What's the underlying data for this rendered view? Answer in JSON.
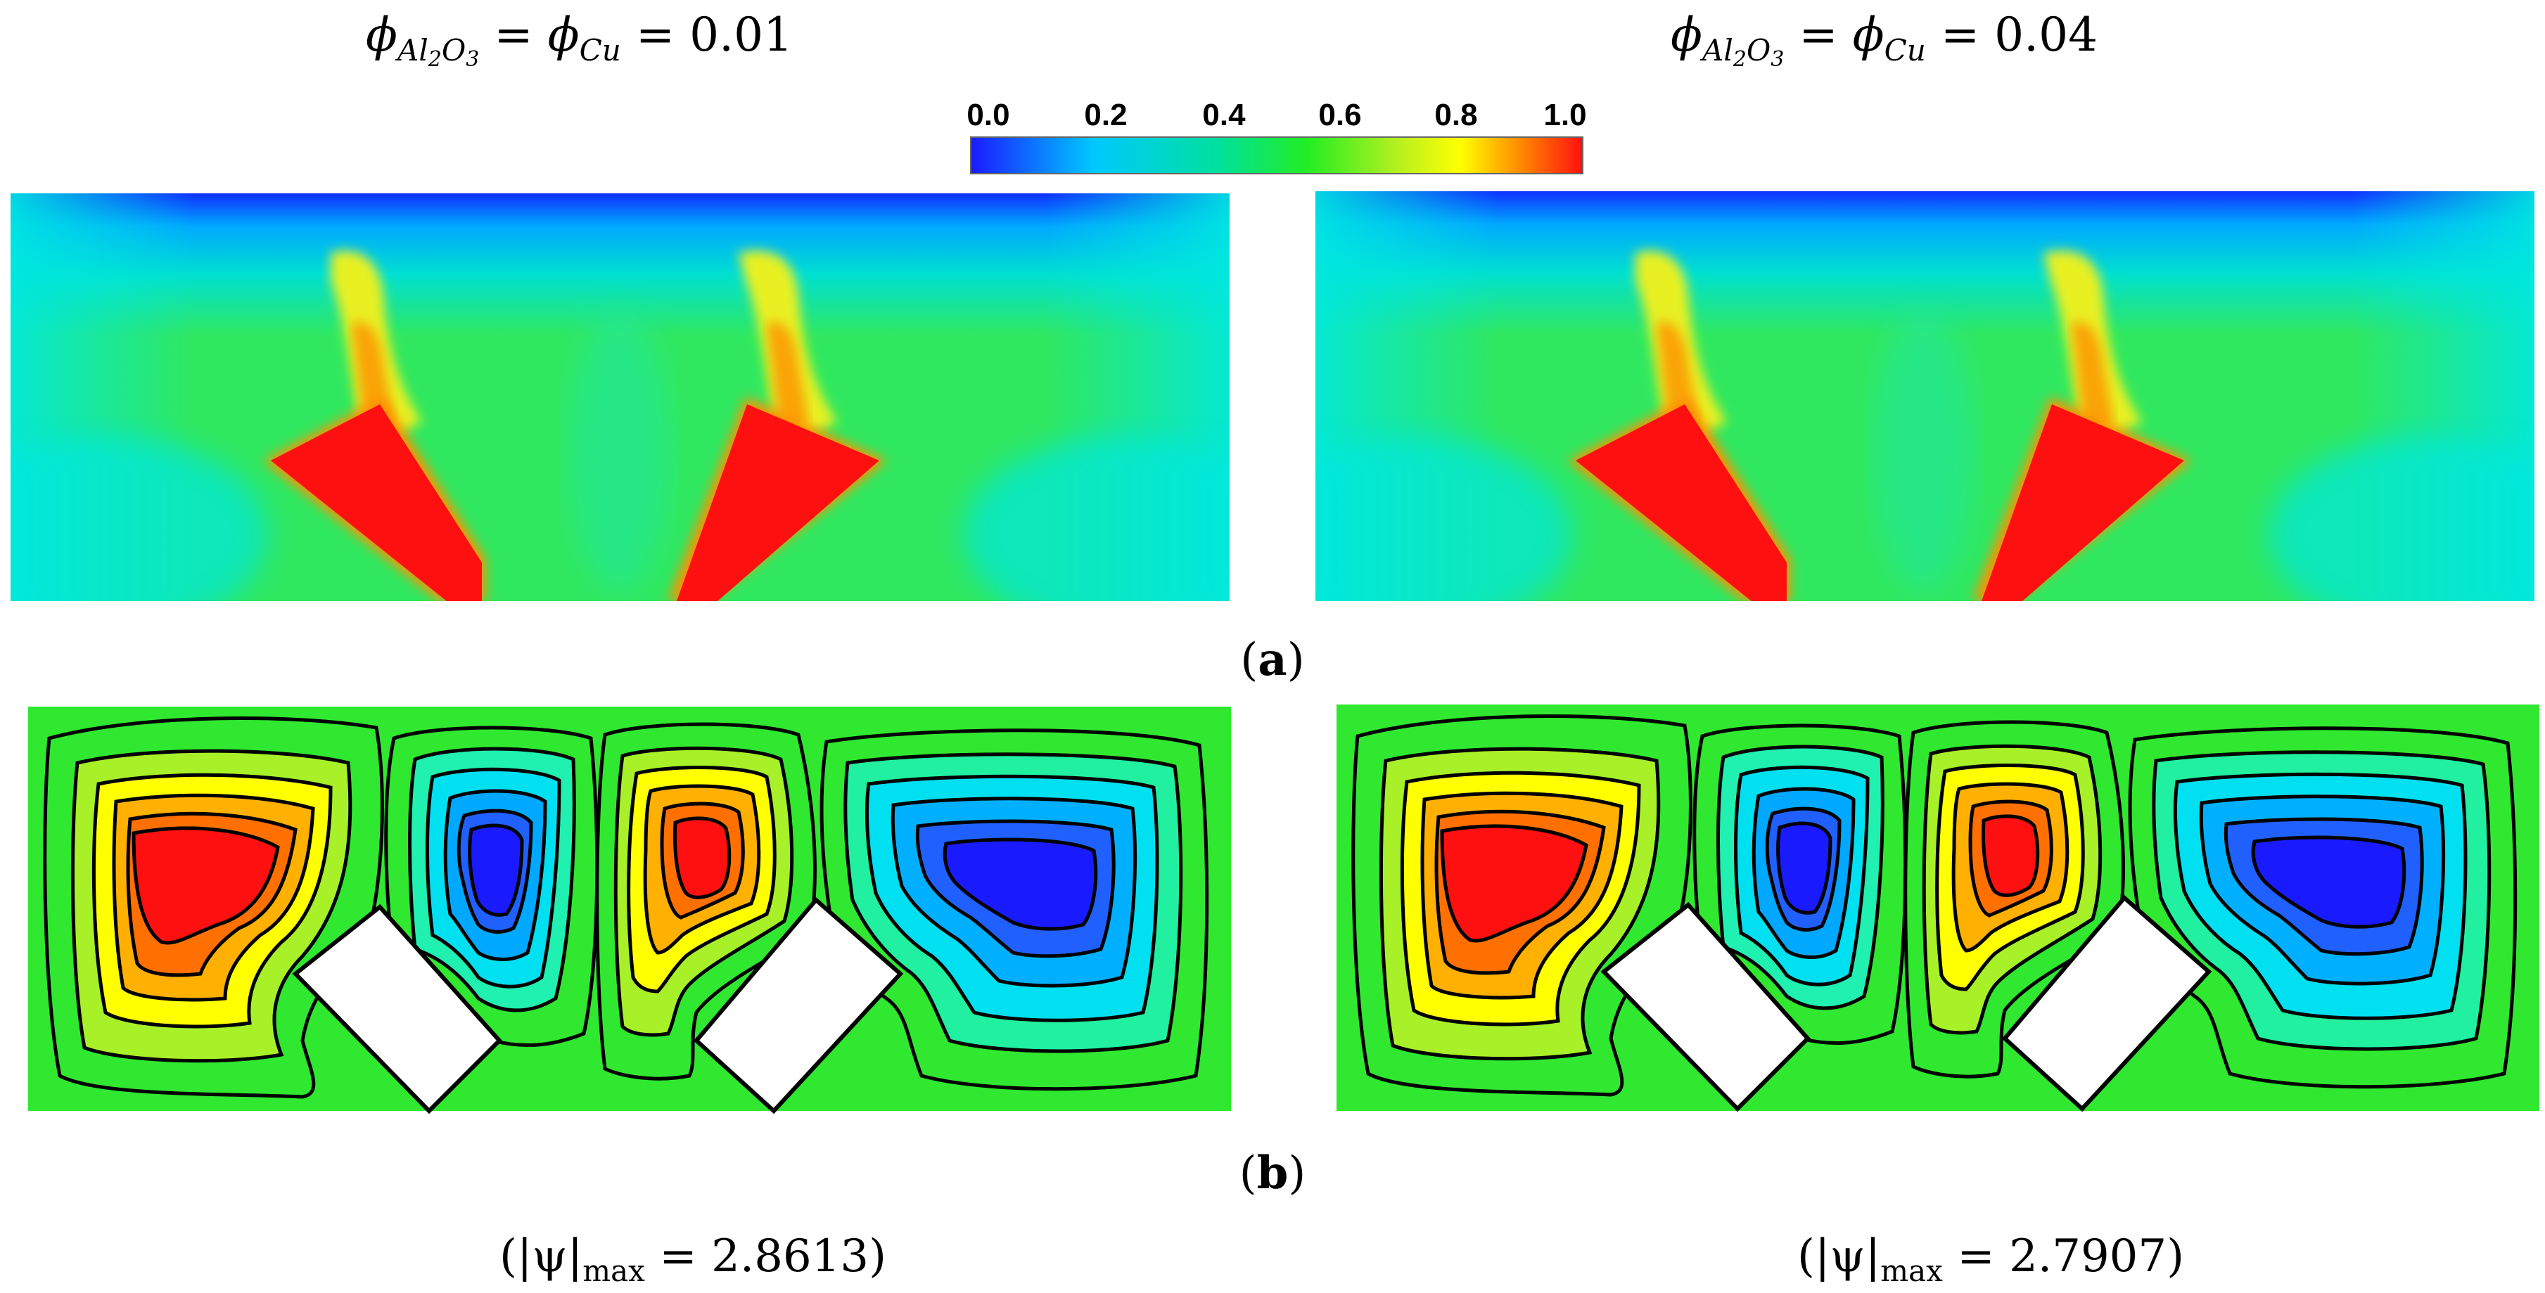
{
  "figure": {
    "headers": [
      {
        "phi1": "ϕ",
        "sub1": "Al",
        "sub1b": "2",
        "sub1c": "O",
        "sub1d": "3",
        "eq1": " = ",
        "phi2": "ϕ",
        "sub2": "Cu",
        "eq2": " = ",
        "value": "0.01"
      },
      {
        "phi1": "ϕ",
        "sub1": "Al",
        "sub1b": "2",
        "sub1c": "O",
        "sub1d": "3",
        "eq1": " = ",
        "phi2": "ϕ",
        "sub2": "Cu",
        "eq2": " = ",
        "value": "0.04"
      }
    ],
    "colorbar": {
      "ticks": [
        "0.0",
        "0.2",
        "0.4",
        "0.6",
        "0.8",
        "1.0"
      ],
      "colors": [
        "#1a1aff",
        "#00c8ff",
        "#00e0a0",
        "#22ee22",
        "#b8f020",
        "#ffff00",
        "#ff8800",
        "#ff1010"
      ]
    },
    "caption_a": {
      "open": "(",
      "letter": "a",
      "close": ")"
    },
    "caption_b": {
      "open": "(",
      "letter": "b",
      "close": ")"
    },
    "psi": [
      {
        "open": "(|ψ|",
        "sub": "max",
        "rest": " = 2.8613)"
      },
      {
        "open": "(|ψ|",
        "sub": "max",
        "rest": " = 2.7907)"
      }
    ]
  }
}
